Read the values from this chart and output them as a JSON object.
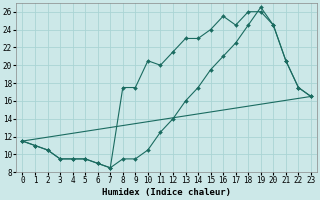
{
  "xlabel": "Humidex (Indice chaleur)",
  "xlim": [
    -0.5,
    23.5
  ],
  "ylim": [
    8,
    27
  ],
  "xticks": [
    0,
    1,
    2,
    3,
    4,
    5,
    6,
    7,
    8,
    9,
    10,
    11,
    12,
    13,
    14,
    15,
    16,
    17,
    18,
    19,
    20,
    21,
    22,
    23
  ],
  "yticks": [
    8,
    10,
    12,
    14,
    16,
    18,
    20,
    22,
    24,
    26
  ],
  "bg_color": "#cce8e8",
  "grid_color": "#aad4d4",
  "line_color": "#1a6b60",
  "line1_x": [
    0,
    1,
    2,
    3,
    4,
    5,
    6,
    7,
    8,
    9,
    10,
    11,
    12,
    13,
    14,
    15,
    16,
    17,
    18,
    19,
    20,
    21,
    22,
    23
  ],
  "line1_y": [
    11.5,
    11.0,
    10.5,
    9.5,
    9.5,
    9.5,
    9.0,
    8.5,
    9.5,
    9.5,
    10.5,
    12.5,
    14.0,
    16.0,
    17.5,
    19.5,
    21.0,
    22.5,
    24.5,
    26.5,
    24.5,
    20.5,
    17.5,
    16.5
  ],
  "line2_x": [
    0,
    1,
    2,
    3,
    4,
    5,
    6,
    7,
    8,
    9,
    10,
    11,
    12,
    13,
    14,
    15,
    16,
    17,
    18,
    19,
    20,
    21,
    22,
    23
  ],
  "line2_y": [
    11.5,
    11.0,
    10.5,
    9.5,
    9.5,
    9.5,
    9.0,
    8.5,
    17.5,
    17.5,
    20.5,
    20.0,
    21.5,
    23.0,
    23.0,
    24.0,
    25.5,
    24.5,
    26.0,
    26.0,
    24.5,
    20.5,
    17.5,
    16.5
  ],
  "line3_x": [
    0,
    23
  ],
  "line3_y": [
    11.5,
    16.5
  ]
}
